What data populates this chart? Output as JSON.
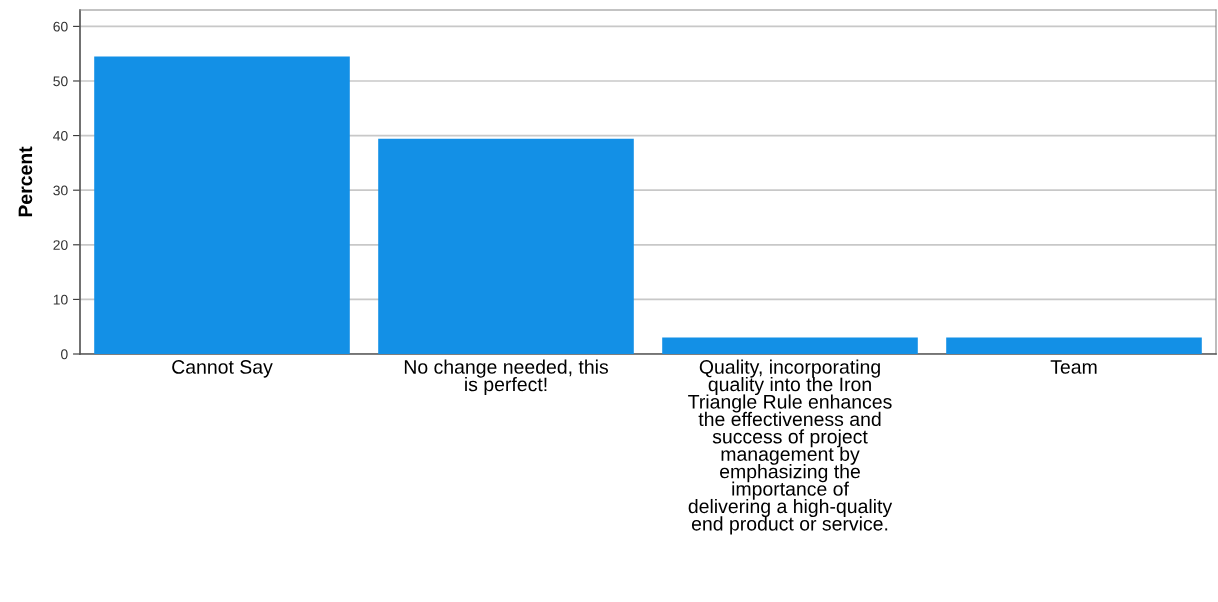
{
  "chart_data": {
    "type": "bar",
    "ylabel": "Percent",
    "categories": [
      "Cannot Say",
      "No change needed, this\nis perfect!",
      "Quality, incorporating\nquality into the Iron\nTriangle Rule enhances\nthe effectiveness and\nsuccess of project\nmanagement by\nemphasizing the\nimportance of\ndelivering a high-quality\nend product or service.",
      "Team"
    ],
    "values": [
      54.5,
      39.4,
      3.0,
      3.0
    ],
    "color": "#1390e6",
    "ylim": [
      0,
      63
    ],
    "yticks": [
      0,
      10,
      20,
      30,
      40,
      50,
      60
    ],
    "grid": "y"
  }
}
